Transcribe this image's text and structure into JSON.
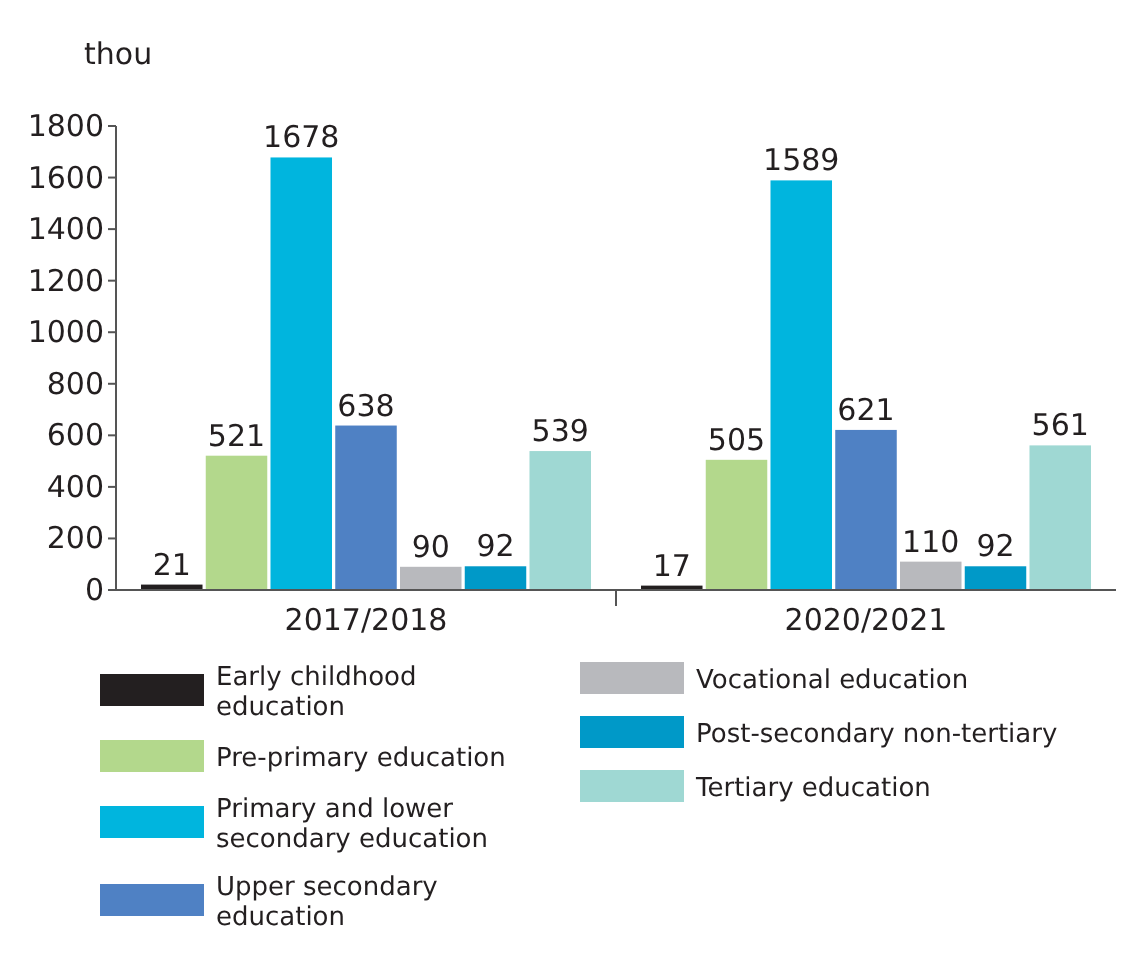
{
  "chart_data": {
    "type": "bar",
    "ylabel": "thou",
    "categories": [
      "2017/2018",
      "2020/2021"
    ],
    "series": [
      {
        "name": "Early childhood education",
        "color": "#231f20",
        "values": [
          21,
          17
        ]
      },
      {
        "name": "Pre-primary education",
        "color": "#b3d88c",
        "values": [
          521,
          505
        ]
      },
      {
        "name": "Primary and lower secondary education",
        "color": "#00b5de",
        "values": [
          1678,
          1589
        ]
      },
      {
        "name": "Upper secondary education",
        "color": "#4f81c4",
        "values": [
          638,
          621
        ]
      },
      {
        "name": "Vocational education",
        "color": "#b8b9bd",
        "values": [
          90,
          110
        ]
      },
      {
        "name": "Post-secondary non-tertiary",
        "color": "#0099c8",
        "values": [
          92,
          92
        ]
      },
      {
        "name": "Tertiary education",
        "color": "#9fd8d3",
        "values": [
          539,
          561
        ]
      }
    ],
    "ylim": [
      0,
      1800
    ],
    "yticks": [
      0,
      200,
      400,
      600,
      800,
      1000,
      1200,
      1400,
      1600,
      1800
    ],
    "data_labels": true,
    "legend": "bottom",
    "grid": false
  }
}
